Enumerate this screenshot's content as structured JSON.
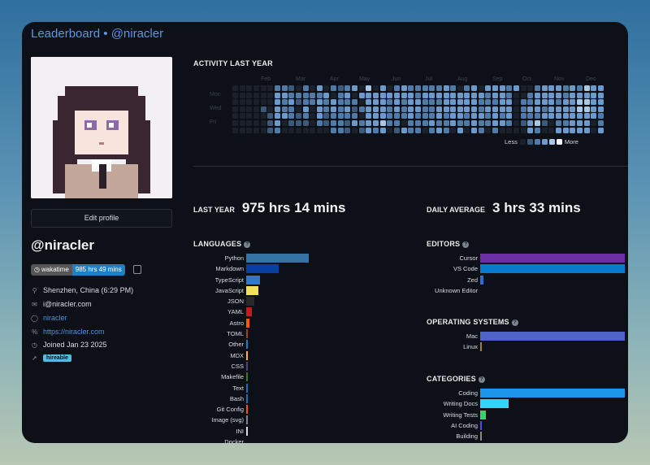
{
  "header": {
    "title": "Leaderboard",
    "sep": "•",
    "user": "@niracler"
  },
  "profile": {
    "edit_label": "Edit profile",
    "name": "@niracler",
    "badge": {
      "left": "wakatime",
      "right": "985 hrs 49 mins"
    },
    "location": "Shenzhen, China (6:29 PM)",
    "email": "i@niracler.com",
    "github": "niracler",
    "website": "https://niracler.com",
    "joined": "Joined Jan 23 2025",
    "hireable": "hireable"
  },
  "activity": {
    "title": "ACTIVITY LAST YEAR",
    "months": [
      "Feb",
      "Mar",
      "Apr",
      "May",
      "Jun",
      "Jul",
      "Aug",
      "Sep",
      "Oct",
      "Nov",
      "Dec"
    ],
    "days": [
      "Mon",
      "Wed",
      "Fri"
    ],
    "legend_less": "Less",
    "legend_more": "More",
    "colors": [
      "#1a212b",
      "#3d5a7a",
      "#4f7ba8",
      "#6b9bcc",
      "#a9c8e6",
      "#eef4fa"
    ],
    "weeks": [
      "0000000",
      "0000000",
      "0000000",
      "0000000",
      "0001000",
      "0000111",
      "2333332",
      "2322300",
      "1232210",
      "0210110",
      "2223210",
      "0220000",
      "3233320",
      "0322110",
      "2033222",
      "1222222",
      "2323211",
      "3021230",
      "0302021",
      "4333333",
      "0333332",
      "3333343",
      "0322220",
      "2333221",
      "3322203",
      "2333322",
      "2233222",
      "2322220",
      "2322232",
      "2323323",
      "3333222",
      "2333330",
      "0333323",
      "2333220",
      "3333333",
      "0322322",
      "3223220",
      "3323332",
      "3333230",
      "2233320",
      "3000000",
      "0022210",
      "0223233",
      "2333242",
      "3332310",
      "3333300",
      "3323323",
      "2233323",
      "3333333",
      "2344333",
      "4344333",
      "3333300",
      "3333223"
    ]
  },
  "stats": {
    "last_year_label": "LAST YEAR",
    "last_year_value": "975 hrs 14 mins",
    "daily_avg_label": "DAILY AVERAGE",
    "daily_avg_value": "3 hrs 33 mins"
  },
  "languages": {
    "title": "LANGUAGES",
    "items": [
      {
        "name": "Python",
        "value": 100,
        "color": "#3572a5"
      },
      {
        "name": "Markdown",
        "value": 52,
        "color": "#083fa1"
      },
      {
        "name": "TypeScript",
        "value": 22,
        "color": "#3178c6"
      },
      {
        "name": "JavaScript",
        "value": 19,
        "color": "#f1e05a"
      },
      {
        "name": "JSON",
        "value": 13,
        "color": "#292929"
      },
      {
        "name": "YAML",
        "value": 9,
        "color": "#cb171e"
      },
      {
        "name": "Astro",
        "value": 5,
        "color": "#ff5a03"
      },
      {
        "name": "TOML",
        "value": 2,
        "color": "#9c4221"
      },
      {
        "name": "Other",
        "value": 2,
        "color": "#1d7fc4"
      },
      {
        "name": "MDX",
        "value": 2,
        "color": "#fcb32c"
      },
      {
        "name": "CSS",
        "value": 1,
        "color": "#563d7c"
      },
      {
        "name": "Makefile",
        "value": 1,
        "color": "#427819"
      },
      {
        "name": "Text",
        "value": 1,
        "color": "#1f6fb5"
      },
      {
        "name": "Bash",
        "value": 1,
        "color": "#1f6fb5"
      },
      {
        "name": "Git Config",
        "value": 1,
        "color": "#f44d27"
      },
      {
        "name": "Image (svg)",
        "value": 1,
        "color": "#7a8594"
      },
      {
        "name": "INI",
        "value": 1,
        "color": "#d1dbe0"
      },
      {
        "name": "Docker",
        "value": 0,
        "color": "#384d54"
      }
    ]
  },
  "editors": {
    "title": "EDITORS",
    "items": [
      {
        "name": "Cursor",
        "value": 50,
        "color": "#6b2fa3"
      },
      {
        "name": "VS Code",
        "value": 50,
        "color": "#0a7acc"
      },
      {
        "name": "Zed",
        "value": 1,
        "color": "#2b6fd1"
      },
      {
        "name": "Unknown Editor",
        "value": 0,
        "color": "#777777"
      }
    ]
  },
  "os": {
    "title": "OPERATING SYSTEMS",
    "items": [
      {
        "name": "Mac",
        "value": 100,
        "color": "#4f63c9"
      },
      {
        "name": "Linux",
        "value": 1,
        "color": "#a08030"
      }
    ]
  },
  "categories": {
    "title": "CATEGORIES",
    "items": [
      {
        "name": "Coding",
        "value": 81,
        "color": "#1b96e8"
      },
      {
        "name": "Writing Docs",
        "value": 16,
        "color": "#2fd6f5"
      },
      {
        "name": "Writing Tests",
        "value": 3,
        "color": "#35d36a"
      },
      {
        "name": "AI Coding",
        "value": 1,
        "color": "#4e4ee6"
      },
      {
        "name": "Building",
        "value": 0.3,
        "color": "#888888"
      }
    ]
  }
}
